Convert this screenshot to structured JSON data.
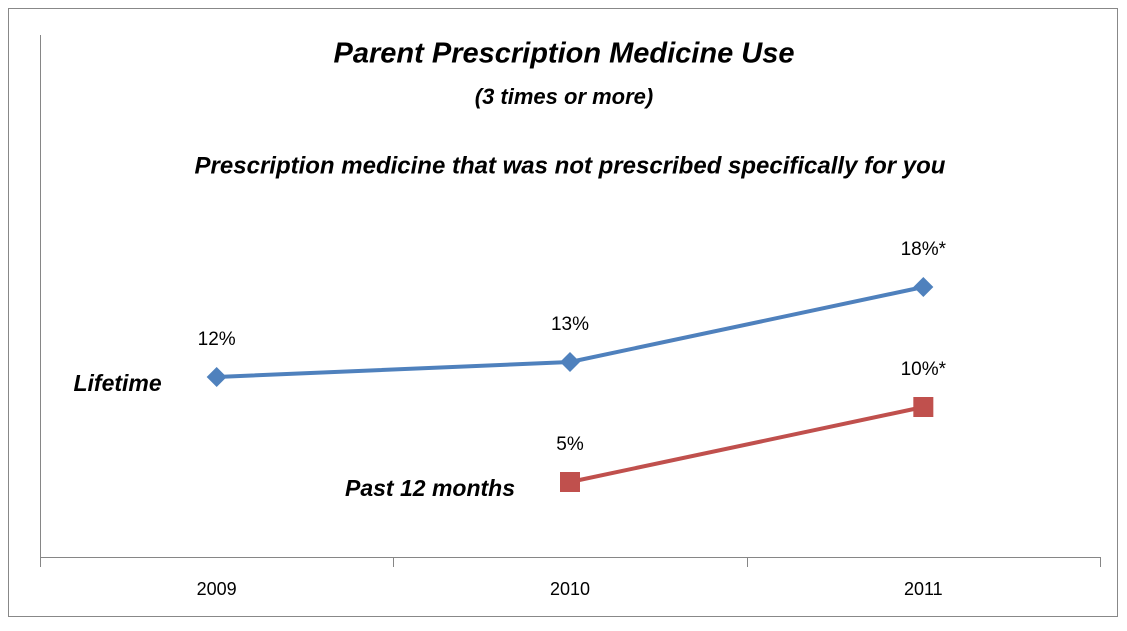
{
  "chart_data": {
    "type": "line",
    "title": "Parent Prescription Medicine Use",
    "subtitle": "(3 times or more)",
    "annotation": "Prescription medicine that was not prescribed specifically for you",
    "categories": [
      "2009",
      "2010",
      "2011"
    ],
    "series": [
      {
        "name": "Lifetime",
        "color": "#4f81bd",
        "marker": "diamond",
        "values": [
          12,
          13,
          18
        ],
        "value_labels": [
          "12%",
          "13%",
          "18%*"
        ]
      },
      {
        "name": "Past 12 months",
        "color": "#c0504d",
        "marker": "square",
        "values": [
          null,
          5,
          10
        ],
        "value_labels": [
          null,
          "5%",
          "10%*"
        ]
      }
    ],
    "ylim": [
      0,
      35
    ]
  }
}
